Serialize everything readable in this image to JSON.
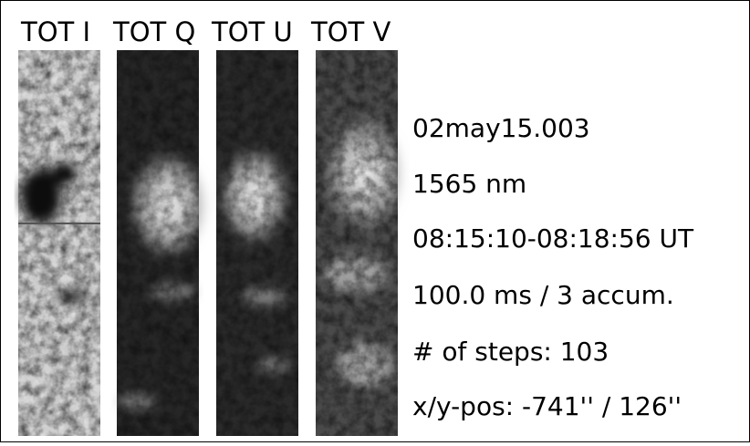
{
  "panels": [
    {
      "label": "TOT I"
    },
    {
      "label": "TOT Q"
    },
    {
      "label": "TOT U"
    },
    {
      "label": "TOT V"
    }
  ],
  "info": [
    "02may15.003",
    "1565 nm",
    "08:15:10-08:18:56 UT",
    "100.0 ms / 3 accum.",
    "# of steps: 103",
    "x/y-pos: -741'' / 126''"
  ]
}
